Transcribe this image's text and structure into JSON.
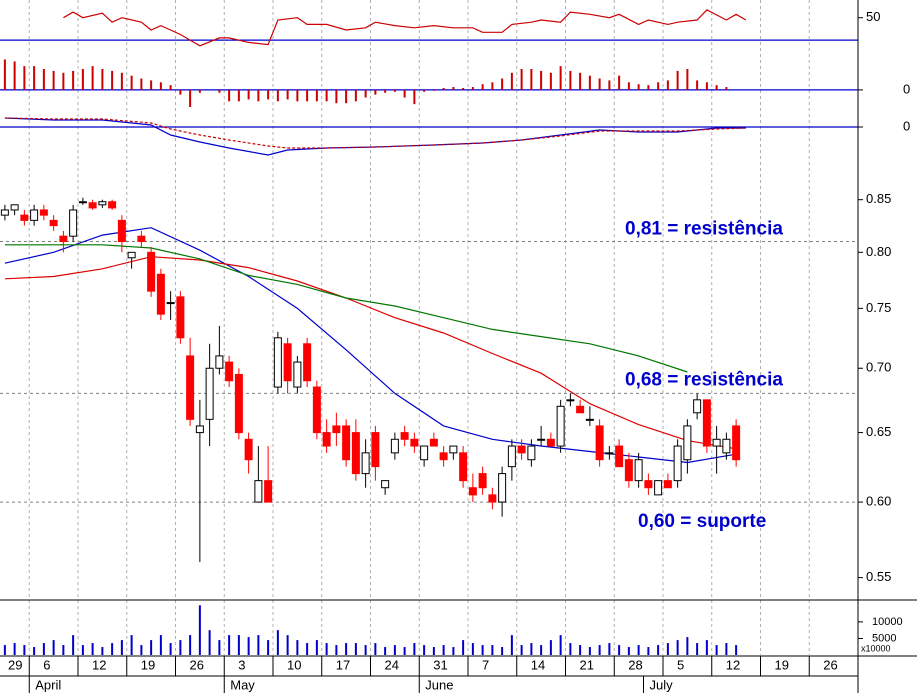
{
  "chart_data": [
    {
      "type": "line",
      "ylim": [
        23,
        64
      ],
      "yticks": [
        50
      ],
      "hline": 30,
      "hline_color": "#0000cc",
      "series": [
        {
          "color": "#cc0000",
          "x": [
            6,
            7,
            8,
            10,
            11,
            12,
            14,
            15,
            16,
            18,
            19,
            20,
            22,
            23,
            25,
            27,
            28,
            30,
            31,
            33,
            35,
            37,
            38,
            40,
            42,
            44,
            46,
            48,
            49,
            51,
            52,
            54,
            55,
            57,
            58,
            60,
            62,
            63,
            65,
            66,
            68,
            69,
            71,
            72,
            74,
            75,
            76
          ],
          "values": [
            50,
            55,
            50,
            54,
            46,
            50,
            46,
            39,
            43,
            35,
            30,
            25,
            32,
            32,
            28,
            26,
            48,
            50,
            44,
            44,
            39,
            41,
            46,
            43,
            41,
            43,
            41,
            41,
            37,
            37,
            44,
            46,
            48,
            46,
            55,
            53,
            50,
            53,
            44,
            48,
            44,
            46,
            48,
            57,
            48,
            53,
            48
          ]
        }
      ]
    },
    {
      "type": "bar",
      "ylim": [
        -18,
        42
      ],
      "yticks": [
        0
      ],
      "hline": 0,
      "hline_color": "#0000cc",
      "color": "#cc0000",
      "values": [
        32,
        30,
        25,
        25,
        22,
        20,
        18,
        20,
        22,
        25,
        22,
        20,
        18,
        15,
        12,
        10,
        8,
        5,
        -5,
        -18,
        -3,
        0,
        -3,
        -12,
        -12,
        -10,
        -12,
        -10,
        -12,
        -10,
        -12,
        -12,
        -12,
        -12,
        -14,
        -14,
        -12,
        -8,
        -5,
        -3,
        -2,
        -8,
        -15,
        -2,
        -1,
        2,
        3,
        2,
        3,
        6,
        8,
        12,
        18,
        22,
        22,
        20,
        18,
        25,
        20,
        18,
        15,
        12,
        10,
        15,
        8,
        6,
        5,
        8,
        10,
        20,
        22,
        10,
        8,
        5,
        3,
        0
      ]
    },
    {
      "type": "line",
      "ylim": [
        -28,
        17
      ],
      "yticks": [
        0
      ],
      "hline": 0,
      "hline_color": "#0000cc",
      "series": [
        {
          "color": "#0000cc",
          "x": [
            0,
            5,
            10,
            15,
            17,
            20,
            23,
            27,
            29,
            33,
            38,
            44,
            49,
            53,
            57,
            61,
            65,
            69,
            73,
            76
          ],
          "values": [
            9,
            7,
            7,
            2,
            -8,
            -15,
            -21,
            -28,
            -23,
            -21,
            -20,
            -18,
            -16,
            -13,
            -8,
            -3,
            -5,
            -5,
            -1,
            -1
          ]
        },
        {
          "color": "#cc0000",
          "dashed": true,
          "x": [
            0,
            5,
            10,
            15,
            17,
            20,
            23,
            27,
            29,
            33,
            38,
            44,
            49,
            53,
            57,
            61,
            65,
            69,
            73,
            76
          ],
          "values": [
            9,
            8,
            8,
            4,
            -2,
            -8,
            -13,
            -19,
            -21,
            -21,
            -20,
            -18,
            -16,
            -13,
            -9,
            -4,
            -4,
            -4,
            -2,
            -1
          ]
        }
      ]
    },
    {
      "type": "candlestick",
      "categories": [
        null,
        null,
        null,
        null,
        null,
        null,
        null,
        null,
        null,
        null,
        null,
        null,
        null,
        null,
        null,
        null,
        null,
        null,
        null,
        null,
        null,
        null,
        null,
        null,
        null,
        null,
        null,
        null,
        null,
        null,
        null,
        null,
        null,
        null,
        null,
        null,
        null,
        null,
        null,
        null,
        null,
        null,
        null,
        null,
        null,
        null,
        null,
        null,
        null,
        null,
        null,
        null,
        null,
        null,
        null,
        null,
        null,
        null,
        null,
        null,
        null,
        null,
        null,
        null,
        null,
        null,
        null,
        null,
        null,
        null,
        null,
        null,
        null,
        null,
        null,
        null
      ],
      "open": [
        0.835,
        0.84,
        0.835,
        0.83,
        0.84,
        0.83,
        0.815,
        0.815,
        0.848,
        0.847,
        0.845,
        0.848,
        0.83,
        0.795,
        0.815,
        0.8,
        0.78,
        0.755,
        0.76,
        0.71,
        0.65,
        0.66,
        0.7,
        0.705,
        0.695,
        0.645,
        0.6,
        0.615,
        0.685,
        0.72,
        0.685,
        0.72,
        0.685,
        0.65,
        0.655,
        0.655,
        0.65,
        0.62,
        0.65,
        0.61,
        0.635,
        0.65,
        0.645,
        0.63,
        0.645,
        0.635,
        0.635,
        0.635,
        0.61,
        0.62,
        0.605,
        0.6,
        0.625,
        0.64,
        0.63,
        0.645,
        0.645,
        0.64,
        0.675,
        0.67,
        0.66,
        0.655,
        0.635,
        0.64,
        0.63,
        0.615,
        0.615,
        0.605,
        0.615,
        0.615,
        0.63,
        0.665,
        0.675,
        0.64,
        0.635,
        0.655
      ],
      "high": [
        0.845,
        0.845,
        0.84,
        0.845,
        0.845,
        0.835,
        0.82,
        0.845,
        0.852,
        0.85,
        0.85,
        0.85,
        0.835,
        0.8,
        0.82,
        0.805,
        0.785,
        0.765,
        0.765,
        0.725,
        0.675,
        0.72,
        0.735,
        0.71,
        0.7,
        0.65,
        0.64,
        0.64,
        0.73,
        0.725,
        0.71,
        0.725,
        0.69,
        0.66,
        0.665,
        0.66,
        0.66,
        0.645,
        0.655,
        0.615,
        0.65,
        0.655,
        0.65,
        0.64,
        0.65,
        0.64,
        0.64,
        0.64,
        0.62,
        0.625,
        0.61,
        0.625,
        0.645,
        0.645,
        0.645,
        0.655,
        0.65,
        0.675,
        0.68,
        0.675,
        0.67,
        0.66,
        0.64,
        0.645,
        0.635,
        0.635,
        0.62,
        0.615,
        0.62,
        0.645,
        0.66,
        0.68,
        0.675,
        0.655,
        0.65,
        0.66
      ],
      "low": [
        0.83,
        0.835,
        0.825,
        0.825,
        0.83,
        0.82,
        0.8,
        0.81,
        0.845,
        0.84,
        0.842,
        0.84,
        0.8,
        0.785,
        0.805,
        0.76,
        0.74,
        0.74,
        0.72,
        0.655,
        0.56,
        0.64,
        0.695,
        0.685,
        0.645,
        0.62,
        0.6,
        0.6,
        0.68,
        0.68,
        0.68,
        0.685,
        0.645,
        0.635,
        0.64,
        0.625,
        0.615,
        0.61,
        0.615,
        0.605,
        0.63,
        0.64,
        0.635,
        0.625,
        0.64,
        0.625,
        0.63,
        0.61,
        0.6,
        0.605,
        0.595,
        0.59,
        0.615,
        0.63,
        0.625,
        0.64,
        0.64,
        0.635,
        0.67,
        0.665,
        0.655,
        0.625,
        0.63,
        0.625,
        0.61,
        0.61,
        0.605,
        0.605,
        0.61,
        0.61,
        0.62,
        0.66,
        0.635,
        0.62,
        0.63,
        0.625
      ],
      "close": [
        0.84,
        0.845,
        0.83,
        0.84,
        0.835,
        0.825,
        0.81,
        0.84,
        0.848,
        0.842,
        0.848,
        0.842,
        0.81,
        0.8,
        0.81,
        0.765,
        0.745,
        0.755,
        0.725,
        0.66,
        0.655,
        0.7,
        0.71,
        0.69,
        0.65,
        0.63,
        0.615,
        0.6,
        0.725,
        0.69,
        0.705,
        0.69,
        0.65,
        0.64,
        0.65,
        0.63,
        0.62,
        0.635,
        0.625,
        0.615,
        0.645,
        0.645,
        0.64,
        0.64,
        0.64,
        0.63,
        0.64,
        0.615,
        0.605,
        0.61,
        0.6,
        0.62,
        0.64,
        0.635,
        0.64,
        0.645,
        0.64,
        0.67,
        0.675,
        0.665,
        0.66,
        0.63,
        0.635,
        0.625,
        0.615,
        0.63,
        0.61,
        0.615,
        0.61,
        0.64,
        0.655,
        0.675,
        0.64,
        0.645,
        0.645,
        0.63
      ],
      "up_color": "#ffffff",
      "down_color": "#ff0000",
      "ylim": [
        0.536,
        0.898
      ],
      "log_scale": true,
      "yticks": [
        0.85,
        {
          "value": 0.8,
          "label": "0.80"
        },
        0.75,
        {
          "value": 0.7,
          "label": "0.70"
        },
        0.65,
        {
          "value": 0.6,
          "label": "0.60"
        },
        0.55
      ],
      "xlim": [
        -0.5,
        87.5
      ],
      "xticks": [
        {
          "value": -2,
          "label": "29"
        },
        {
          "value": 3,
          "label": "6"
        },
        {
          "value": 8,
          "label": "12"
        },
        {
          "value": 13,
          "label": "19"
        },
        {
          "value": 18,
          "label": "26"
        },
        {
          "value": 23,
          "label": "3"
        },
        {
          "value": 28,
          "label": "10"
        },
        {
          "value": 33,
          "label": "17"
        },
        {
          "value": 38,
          "label": "24"
        },
        {
          "value": 43,
          "label": "31"
        },
        {
          "value": 48,
          "label": "7"
        },
        {
          "value": 53,
          "label": "14"
        },
        {
          "value": 58,
          "label": "21"
        },
        {
          "value": 63,
          "label": "28"
        },
        {
          "value": 68,
          "label": "5"
        },
        {
          "value": 73,
          "label": "12"
        },
        {
          "value": 78,
          "label": "19"
        },
        {
          "value": 83,
          "label": "26"
        }
      ],
      "month_ticks": [
        {
          "value": 3,
          "label": "April"
        },
        {
          "value": 23,
          "label": "May"
        },
        {
          "value": 43,
          "label": "June"
        },
        {
          "value": 66,
          "label": "July"
        }
      ],
      "grid": true,
      "series": [
        {
          "color": "#0000cc",
          "x": [
            0,
            5,
            10,
            15,
            20,
            25,
            30,
            35,
            40,
            45,
            50,
            55,
            60,
            65,
            70,
            75
          ],
          "values": [
            0.79,
            0.8,
            0.816,
            0.823,
            0.802,
            0.778,
            0.75,
            0.715,
            0.68,
            0.655,
            0.645,
            0.64,
            0.636,
            0.632,
            0.628,
            0.634
          ]
        },
        {
          "color": "#dd0000",
          "x": [
            0,
            5,
            10,
            15,
            20,
            25,
            30,
            35,
            40,
            45,
            50,
            55,
            60,
            65,
            70,
            75
          ],
          "values": [
            0.776,
            0.778,
            0.785,
            0.796,
            0.793,
            0.786,
            0.774,
            0.759,
            0.742,
            0.729,
            0.712,
            0.696,
            0.672,
            0.656,
            0.644,
            0.638
          ]
        },
        {
          "color": "#007700",
          "x": [
            0,
            5,
            10,
            15,
            20,
            25,
            30,
            35,
            40,
            45,
            50,
            55,
            60,
            65,
            70,
            75
          ],
          "values": [
            0.807,
            0.807,
            0.807,
            0.804,
            0.794,
            0.779,
            0.771,
            0.759,
            0.752,
            0.742,
            0.732,
            0.726,
            0.72,
            0.71,
            0.697,
            null
          ]
        }
      ],
      "levels": [
        {
          "value": 0.81,
          "label": "0,81 = resistência"
        },
        {
          "value": 0.68,
          "label": "0,68 = resistência"
        },
        {
          "value": 0.6,
          "label": "0,60 = suporte"
        }
      ],
      "level_color": "#0000cc"
    },
    {
      "type": "bar",
      "ylim": [
        0,
        16000
      ],
      "yticks": [
        10000,
        5000
      ],
      "color": "#0000cc",
      "unit_label": "x10000",
      "values": [
        3000,
        3600,
        3000,
        2400,
        3600,
        4500,
        3000,
        6000,
        3000,
        3600,
        2400,
        3600,
        4500,
        6000,
        3000,
        4500,
        6000,
        3600,
        4500,
        6000,
        15000,
        7500,
        4500,
        6000,
        6000,
        5400,
        6000,
        4500,
        7500,
        6000,
        4500,
        3600,
        4500,
        3600,
        3000,
        3600,
        3600,
        3000,
        3600,
        2400,
        3000,
        2400,
        3600,
        3000,
        2400,
        3000,
        2400,
        4500,
        3600,
        3000,
        3000,
        2400,
        6000,
        3000,
        3600,
        3000,
        4500,
        6000,
        3600,
        3000,
        2400,
        3000,
        3600,
        3000,
        2400,
        3000,
        2400,
        3000,
        3600,
        4500,
        5400,
        3600,
        4500,
        3000,
        3600,
        3000
      ]
    }
  ]
}
